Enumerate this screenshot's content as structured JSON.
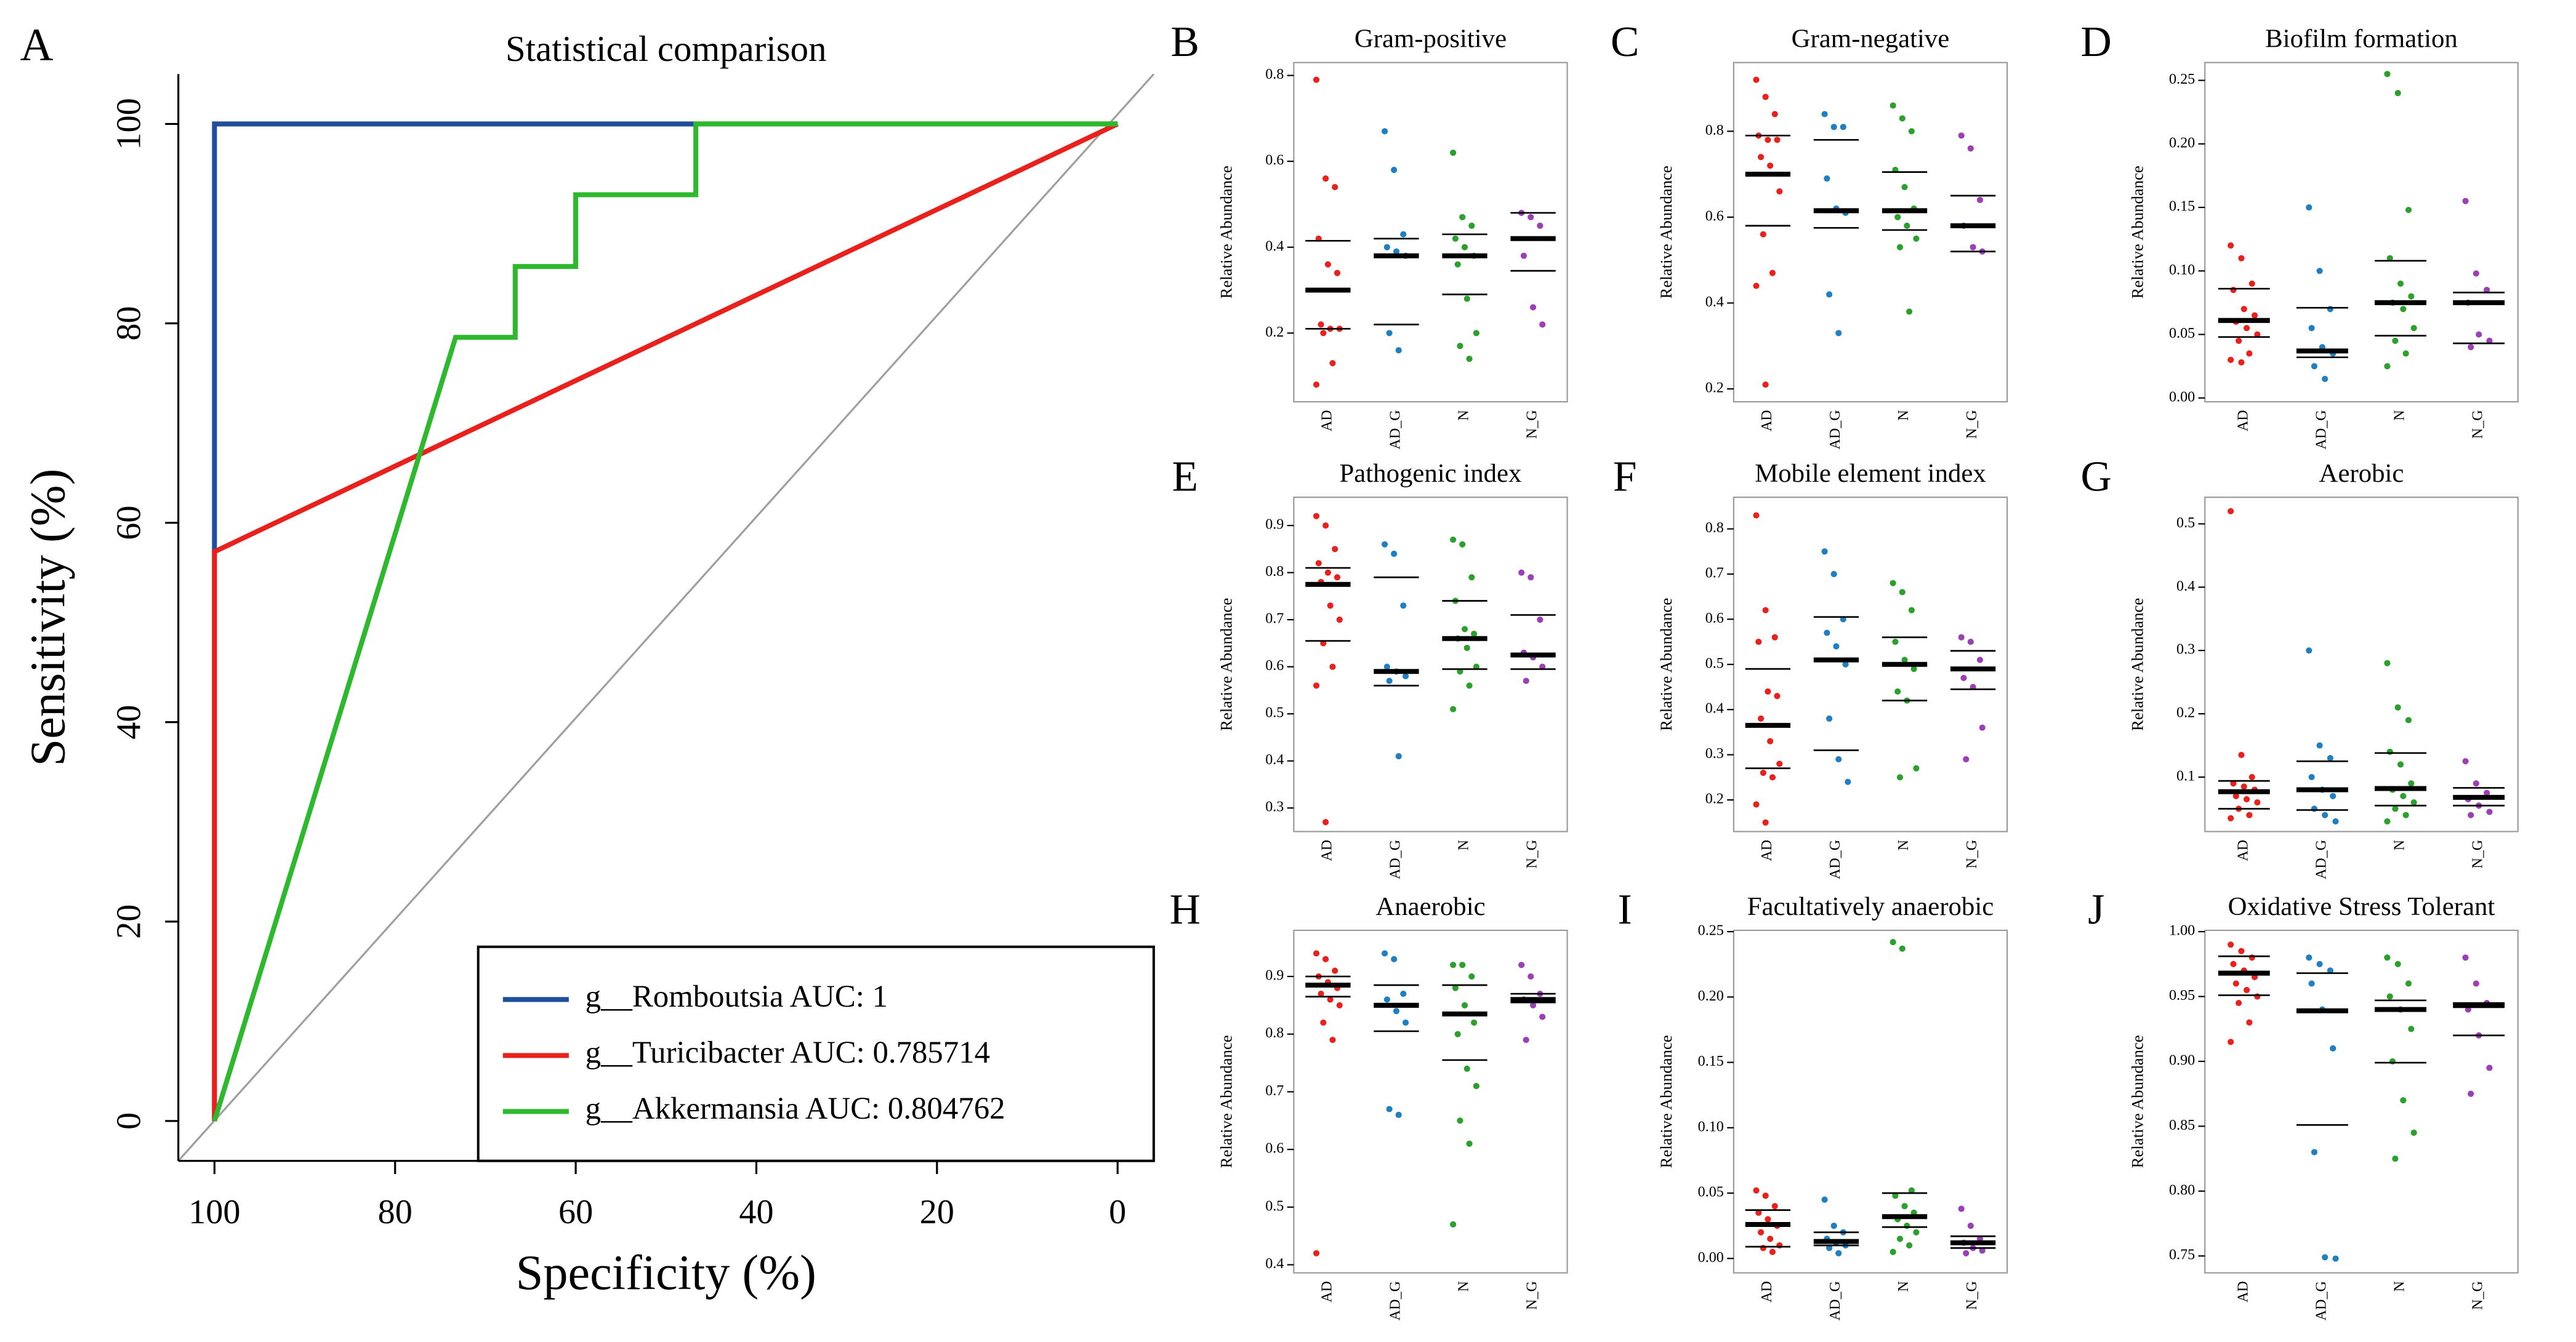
{
  "chart_data": [
    {
      "type": "line",
      "label": "A",
      "title": "Statistical comparison",
      "xlabel": "Specificity (%)",
      "ylabel": "Sensitivity (%)",
      "xlim": [
        104,
        -4
      ],
      "ylim": [
        -4,
        105
      ],
      "xticks": [
        100,
        80,
        60,
        40,
        20,
        0
      ],
      "yticks": [
        0,
        20,
        40,
        60,
        80,
        100
      ],
      "legend": "bottom-right",
      "series": [
        {
          "name": "g__Romboutsia  AUC: 1",
          "color": "#1f4e9c",
          "x": [
            100,
            100,
            0
          ],
          "values": [
            0,
            100,
            100
          ]
        },
        {
          "name": "g__Turicibacter  AUC: 0.785714",
          "color": "#e8211d",
          "x": [
            100,
            100,
            0
          ],
          "values": [
            0,
            57.1,
            100
          ]
        },
        {
          "name": "g__Akkermansia  AUC: 0.804762",
          "color": "#2eb82e",
          "x": [
            100,
            73.3,
            66.7,
            66.7,
            60,
            60,
            46.7,
            46.7,
            0
          ],
          "values": [
            0,
            78.6,
            78.6,
            85.7,
            85.7,
            92.9,
            92.9,
            100,
            100
          ]
        }
      ]
    },
    {
      "type": "strip",
      "label": "B",
      "title": "Gram-positive",
      "ylabel": "Relative Abundance",
      "categories": [
        "AD",
        "AD_G",
        "N",
        "N_G"
      ],
      "colors": [
        "#e8211d",
        "#1f7fc0",
        "#2ca02c",
        "#9b3fb5"
      ],
      "ylim": [
        0.04,
        0.83
      ],
      "yticks": [
        0.2,
        0.4,
        0.6,
        0.8
      ],
      "points": [
        [
          0.79,
          0.56,
          0.54,
          0.42,
          0.36,
          0.34,
          0.22,
          0.21,
          0.21,
          0.2,
          0.13,
          0.08
        ],
        [
          0.67,
          0.58,
          0.43,
          0.4,
          0.39,
          0.38,
          0.2,
          0.16
        ],
        [
          0.62,
          0.47,
          0.45,
          0.42,
          0.4,
          0.38,
          0.36,
          0.28,
          0.2,
          0.17,
          0.14
        ],
        [
          0.48,
          0.47,
          0.45,
          0.38,
          0.26,
          0.22
        ]
      ],
      "median": [
        0.3,
        0.38,
        0.38,
        0.42
      ],
      "q1": [
        0.21,
        0.22,
        0.29,
        0.345
      ],
      "q3": [
        0.415,
        0.42,
        0.43,
        0.48
      ]
    },
    {
      "type": "strip",
      "label": "C",
      "title": "Gram-negative",
      "ylabel": "Relative Abundance",
      "categories": [
        "AD",
        "AD_G",
        "N",
        "N_G"
      ],
      "colors": [
        "#e8211d",
        "#1f7fc0",
        "#2ca02c",
        "#9b3fb5"
      ],
      "ylim": [
        0.17,
        0.96
      ],
      "yticks": [
        0.2,
        0.4,
        0.6,
        0.8
      ],
      "points": [
        [
          0.92,
          0.88,
          0.84,
          0.79,
          0.78,
          0.78,
          0.74,
          0.72,
          0.66,
          0.56,
          0.47,
          0.44,
          0.21
        ],
        [
          0.84,
          0.81,
          0.81,
          0.69,
          0.62,
          0.61,
          0.42,
          0.33
        ],
        [
          0.86,
          0.83,
          0.8,
          0.71,
          0.67,
          0.62,
          0.6,
          0.58,
          0.55,
          0.53,
          0.38
        ],
        [
          0.79,
          0.76,
          0.64,
          0.58,
          0.53,
          0.52
        ]
      ],
      "median": [
        0.7,
        0.615,
        0.615,
        0.58
      ],
      "q1": [
        0.58,
        0.575,
        0.57,
        0.52
      ],
      "q3": [
        0.79,
        0.78,
        0.705,
        0.65
      ]
    },
    {
      "type": "strip",
      "label": "D",
      "title": "Biofilm formation",
      "ylabel": "Relative Abundance",
      "categories": [
        "AD",
        "AD_G",
        "N",
        "N_G"
      ],
      "colors": [
        "#e8211d",
        "#1f7fc0",
        "#2ca02c",
        "#9b3fb5"
      ],
      "ylim": [
        -0.003,
        0.264
      ],
      "yticks": [
        {
          "value": 0,
          "label": "0.00"
        },
        {
          "value": 0.05,
          "label": "0.05"
        },
        {
          "value": 0.1,
          "label": "0.10"
        },
        {
          "value": 0.15,
          "label": "0.15"
        },
        {
          "value": 0.2,
          "label": "0.20"
        },
        {
          "value": 0.25,
          "label": "0.25"
        }
      ],
      "points": [
        [
          0.12,
          0.11,
          0.09,
          0.085,
          0.07,
          0.065,
          0.06,
          0.055,
          0.05,
          0.045,
          0.035,
          0.03,
          0.028
        ],
        [
          0.15,
          0.1,
          0.07,
          0.055,
          0.04,
          0.035,
          0.025,
          0.015
        ],
        [
          0.255,
          0.24,
          0.148,
          0.11,
          0.09,
          0.08,
          0.075,
          0.07,
          0.055,
          0.045,
          0.035,
          0.025
        ],
        [
          0.155,
          0.098,
          0.085,
          0.075,
          0.05,
          0.045,
          0.04
        ]
      ],
      "median": [
        0.061,
        0.037,
        0.075,
        0.075
      ],
      "q1": [
        0.048,
        0.032,
        0.049,
        0.043
      ],
      "q3": [
        0.086,
        0.071,
        0.108,
        0.083
      ]
    },
    {
      "type": "strip",
      "label": "E",
      "title": "Pathogenic index",
      "ylabel": "Relative Abundance",
      "categories": [
        "AD",
        "AD_G",
        "N",
        "N_G"
      ],
      "colors": [
        "#e8211d",
        "#1f7fc0",
        "#2ca02c",
        "#9b3fb5"
      ],
      "ylim": [
        0.25,
        0.96
      ],
      "yticks": [
        0.3,
        0.4,
        0.5,
        0.6,
        0.7,
        0.8,
        0.9
      ],
      "points": [
        [
          0.92,
          0.9,
          0.85,
          0.82,
          0.8,
          0.79,
          0.78,
          0.73,
          0.7,
          0.65,
          0.6,
          0.56,
          0.27
        ],
        [
          0.86,
          0.84,
          0.73,
          0.6,
          0.59,
          0.58,
          0.57,
          0.41
        ],
        [
          0.87,
          0.86,
          0.79,
          0.74,
          0.68,
          0.67,
          0.66,
          0.64,
          0.6,
          0.59,
          0.56,
          0.51
        ],
        [
          0.8,
          0.79,
          0.7,
          0.63,
          0.62,
          0.6,
          0.57
        ]
      ],
      "median": [
        0.775,
        0.59,
        0.66,
        0.625
      ],
      "q1": [
        0.655,
        0.56,
        0.595,
        0.595
      ],
      "q3": [
        0.81,
        0.79,
        0.74,
        0.71
      ]
    },
    {
      "type": "strip",
      "label": "F",
      "title": "Mobile element index",
      "ylabel": "Relative Abundance",
      "categories": [
        "AD",
        "AD_G",
        "N",
        "N_G"
      ],
      "colors": [
        "#e8211d",
        "#1f7fc0",
        "#2ca02c",
        "#9b3fb5"
      ],
      "ylim": [
        0.13,
        0.87
      ],
      "yticks": [
        0.2,
        0.3,
        0.4,
        0.5,
        0.6,
        0.7,
        0.8
      ],
      "points": [
        [
          0.83,
          0.62,
          0.56,
          0.55,
          0.44,
          0.43,
          0.38,
          0.33,
          0.28,
          0.26,
          0.25,
          0.19,
          0.15
        ],
        [
          0.75,
          0.7,
          0.6,
          0.57,
          0.54,
          0.5,
          0.38,
          0.29,
          0.24
        ],
        [
          0.68,
          0.66,
          0.62,
          0.55,
          0.51,
          0.49,
          0.44,
          0.42,
          0.27,
          0.25
        ],
        [
          0.56,
          0.55,
          0.51,
          0.47,
          0.45,
          0.36,
          0.29
        ]
      ],
      "median": [
        0.365,
        0.51,
        0.5,
        0.49
      ],
      "q1": [
        0.27,
        0.31,
        0.42,
        0.445
      ],
      "q3": [
        0.49,
        0.605,
        0.56,
        0.53
      ]
    },
    {
      "type": "strip",
      "label": "G",
      "title": "Aerobic",
      "ylabel": "Relative Abundance",
      "categories": [
        "AD",
        "AD_G",
        "N",
        "N_G"
      ],
      "colors": [
        "#e8211d",
        "#1f7fc0",
        "#2ca02c",
        "#9b3fb5"
      ],
      "ylim": [
        0.014,
        0.542
      ],
      "yticks": [
        0.1,
        0.2,
        0.3,
        0.4,
        0.5
      ],
      "points": [
        [
          0.52,
          0.135,
          0.1,
          0.09,
          0.085,
          0.08,
          0.07,
          0.065,
          0.06,
          0.05,
          0.04,
          0.035
        ],
        [
          0.3,
          0.15,
          0.13,
          0.1,
          0.08,
          0.07,
          0.05,
          0.04,
          0.03
        ],
        [
          0.28,
          0.21,
          0.19,
          0.14,
          0.12,
          0.09,
          0.08,
          0.07,
          0.06,
          0.05,
          0.04,
          0.03
        ],
        [
          0.125,
          0.09,
          0.075,
          0.065,
          0.055,
          0.045,
          0.04
        ]
      ],
      "median": [
        0.077,
        0.08,
        0.082,
        0.068
      ],
      "q1": [
        0.05,
        0.048,
        0.055,
        0.055
      ],
      "q3": [
        0.094,
        0.125,
        0.138,
        0.083
      ]
    },
    {
      "type": "strip",
      "label": "H",
      "title": "Anaerobic",
      "ylabel": "Relative Abundance",
      "categories": [
        "AD",
        "AD_G",
        "N",
        "N_G"
      ],
      "colors": [
        "#e8211d",
        "#1f7fc0",
        "#2ca02c",
        "#9b3fb5"
      ],
      "ylim": [
        0.386,
        0.98
      ],
      "yticks": [
        0.4,
        0.5,
        0.6,
        0.7,
        0.8,
        0.9
      ],
      "points": [
        [
          0.94,
          0.93,
          0.91,
          0.9,
          0.89,
          0.88,
          0.87,
          0.86,
          0.85,
          0.82,
          0.79,
          0.42
        ],
        [
          0.94,
          0.93,
          0.87,
          0.86,
          0.84,
          0.82,
          0.67,
          0.66
        ],
        [
          0.92,
          0.92,
          0.9,
          0.88,
          0.85,
          0.82,
          0.8,
          0.74,
          0.71,
          0.65,
          0.61,
          0.47
        ],
        [
          0.92,
          0.9,
          0.87,
          0.86,
          0.85,
          0.83,
          0.79
        ]
      ],
      "median": [
        0.885,
        0.85,
        0.835,
        0.86
      ],
      "q1": [
        0.865,
        0.805,
        0.755,
        0.855
      ],
      "q3": [
        0.9,
        0.885,
        0.885,
        0.87
      ]
    },
    {
      "type": "strip",
      "label": "I",
      "title": "Facultatively anaerobic",
      "ylabel": "Relative Abundance",
      "categories": [
        "AD",
        "AD_G",
        "N",
        "N_G"
      ],
      "colors": [
        "#e8211d",
        "#1f7fc0",
        "#2ca02c",
        "#9b3fb5"
      ],
      "ylim": [
        -0.011,
        0.251
      ],
      "yticks": [
        {
          "value": 0,
          "label": "0.00"
        },
        {
          "value": 0.05,
          "label": "0.05"
        },
        {
          "value": 0.1,
          "label": "0.10"
        },
        {
          "value": 0.15,
          "label": "0.15"
        },
        {
          "value": 0.2,
          "label": "0.20"
        },
        {
          "value": 0.25,
          "label": "0.25"
        }
      ],
      "points": [
        [
          0.052,
          0.048,
          0.04,
          0.035,
          0.03,
          0.025,
          0.02,
          0.015,
          0.01,
          0.008,
          0.005
        ],
        [
          0.045,
          0.025,
          0.02,
          0.015,
          0.012,
          0.01,
          0.008,
          0.004
        ],
        [
          0.242,
          0.237,
          0.052,
          0.048,
          0.04,
          0.035,
          0.03,
          0.025,
          0.02,
          0.015,
          0.01,
          0.005
        ],
        [
          0.038,
          0.025,
          0.015,
          0.012,
          0.008,
          0.006,
          0.004
        ]
      ],
      "median": [
        0.026,
        0.013,
        0.032,
        0.012
      ],
      "q1": [
        0.009,
        0.01,
        0.024,
        0.008
      ],
      "q3": [
        0.037,
        0.02,
        0.05,
        0.017
      ]
    },
    {
      "type": "strip",
      "label": "J",
      "title": "Oxidative Stress Tolerant",
      "ylabel": "Relative Abundance",
      "categories": [
        "AD",
        "AD_G",
        "N",
        "N_G"
      ],
      "colors": [
        "#e8211d",
        "#1f7fc0",
        "#2ca02c",
        "#9b3fb5"
      ],
      "ylim": [
        0.737,
        1.001
      ],
      "yticks": [
        {
          "value": 0.75,
          "label": "0.75"
        },
        {
          "value": 0.8,
          "label": "0.80"
        },
        {
          "value": 0.85,
          "label": "0.85"
        },
        {
          "value": 0.9,
          "label": "0.90"
        },
        {
          "value": 0.95,
          "label": "0.95"
        },
        {
          "value": 1,
          "label": "1.00"
        }
      ],
      "points": [
        [
          0.99,
          0.985,
          0.98,
          0.975,
          0.97,
          0.965,
          0.96,
          0.955,
          0.95,
          0.945,
          0.93,
          0.915
        ],
        [
          0.98,
          0.975,
          0.97,
          0.96,
          0.94,
          0.91,
          0.83,
          0.749,
          0.748
        ],
        [
          0.98,
          0.975,
          0.96,
          0.95,
          0.94,
          0.925,
          0.9,
          0.87,
          0.845,
          0.825
        ],
        [
          0.98,
          0.96,
          0.945,
          0.94,
          0.92,
          0.895,
          0.875
        ]
      ],
      "median": [
        0.968,
        0.939,
        0.94,
        0.943
      ],
      "q1": [
        0.951,
        0.851,
        0.899,
        0.92
      ],
      "q3": [
        0.981,
        0.968,
        0.947,
        0.945
      ]
    }
  ]
}
